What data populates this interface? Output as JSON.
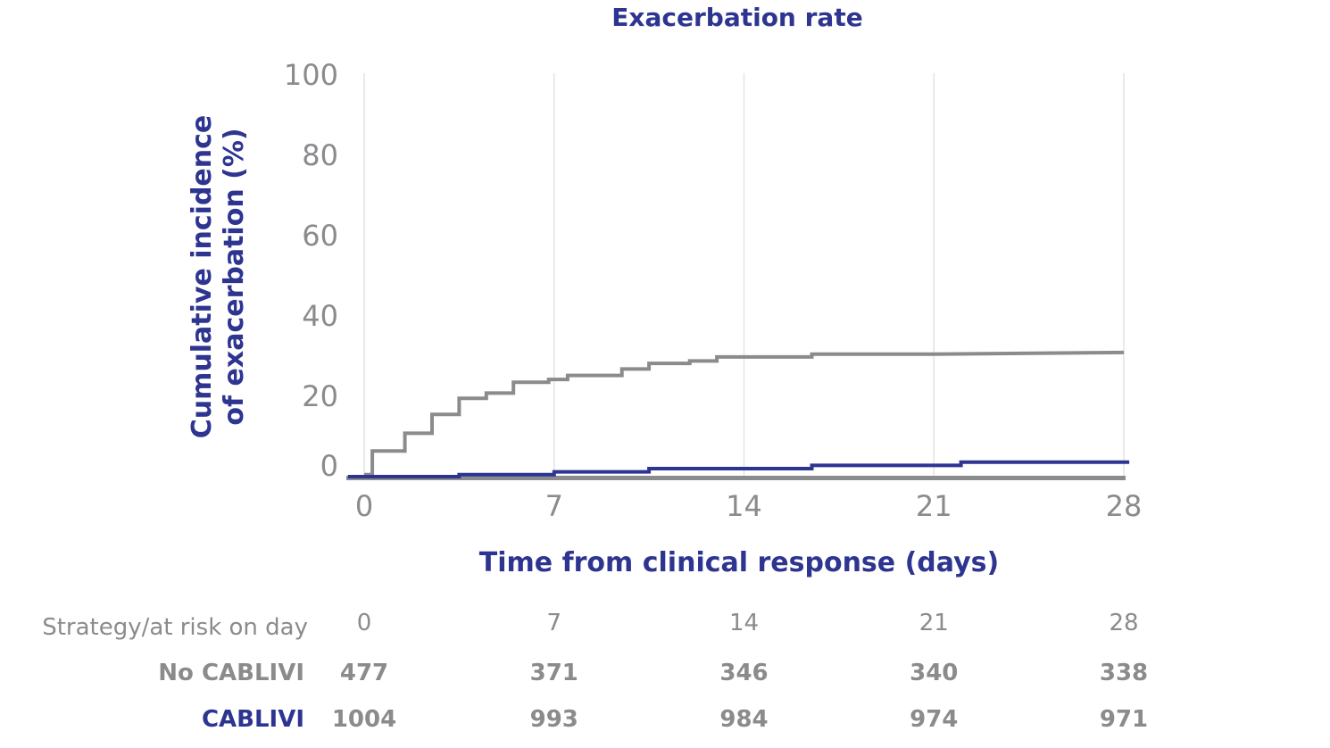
{
  "chart_data": {
    "type": "line",
    "title": "Exacerbation rate",
    "xlabel": "Time from clinical response (days)",
    "ylabel": [
      "Cumulative incidence",
      "of exacerbation (%)"
    ],
    "xlim": [
      0,
      28
    ],
    "ylim": [
      0,
      100
    ],
    "x_ticks": [
      "0",
      "7",
      "14",
      "21",
      "28"
    ],
    "y_ticks": [
      "100",
      "80",
      "60",
      "40",
      "20",
      "0"
    ],
    "grid": "vertical",
    "series": [
      {
        "name": "No CABLIVI",
        "color": "#8a8b8d",
        "step": true,
        "points": [
          [
            0,
            0.5
          ],
          [
            0.3,
            0.5
          ],
          [
            0.3,
            6.4
          ],
          [
            1.5,
            6.4
          ],
          [
            1.5,
            10.8
          ],
          [
            2.5,
            10.8
          ],
          [
            2.5,
            15.5
          ],
          [
            3.5,
            15.5
          ],
          [
            3.5,
            19.5
          ],
          [
            4.5,
            19.5
          ],
          [
            4.5,
            20.8
          ],
          [
            5.5,
            20.8
          ],
          [
            5.5,
            23.5
          ],
          [
            6.8,
            23.5
          ],
          [
            6.8,
            24.2
          ],
          [
            7.5,
            24.2
          ],
          [
            7.5,
            25.2
          ],
          [
            9.5,
            25.2
          ],
          [
            9.5,
            26.8
          ],
          [
            10.5,
            26.8
          ],
          [
            10.5,
            28.2
          ],
          [
            12,
            28.2
          ],
          [
            12,
            28.8
          ],
          [
            13,
            28.8
          ],
          [
            13,
            29.8
          ],
          [
            16.5,
            29.8
          ],
          [
            16.5,
            30.5
          ],
          [
            21,
            30.5
          ],
          [
            28,
            30.9
          ]
        ]
      },
      {
        "name": "CABLIVI",
        "color": "#2e3591",
        "step": true,
        "points": [
          [
            -0.6,
            0
          ],
          [
            3.5,
            0
          ],
          [
            3.5,
            0.5
          ],
          [
            7,
            0.5
          ],
          [
            7,
            1.2
          ],
          [
            10.5,
            1.2
          ],
          [
            10.5,
            2.0
          ],
          [
            16.5,
            2.0
          ],
          [
            16.5,
            2.8
          ],
          [
            22,
            2.8
          ],
          [
            22,
            3.6
          ],
          [
            28.2,
            3.6
          ]
        ]
      }
    ],
    "risk_table": {
      "header": "Strategy/at risk on day",
      "days": [
        "0",
        "7",
        "14",
        "21",
        "28"
      ],
      "rows": [
        {
          "label": "No CABLIVI",
          "values": [
            "477",
            "371",
            "346",
            "340",
            "338"
          ]
        },
        {
          "label": "CABLIVI",
          "values": [
            "1004",
            "993",
            "984",
            "974",
            "971"
          ]
        }
      ]
    }
  }
}
